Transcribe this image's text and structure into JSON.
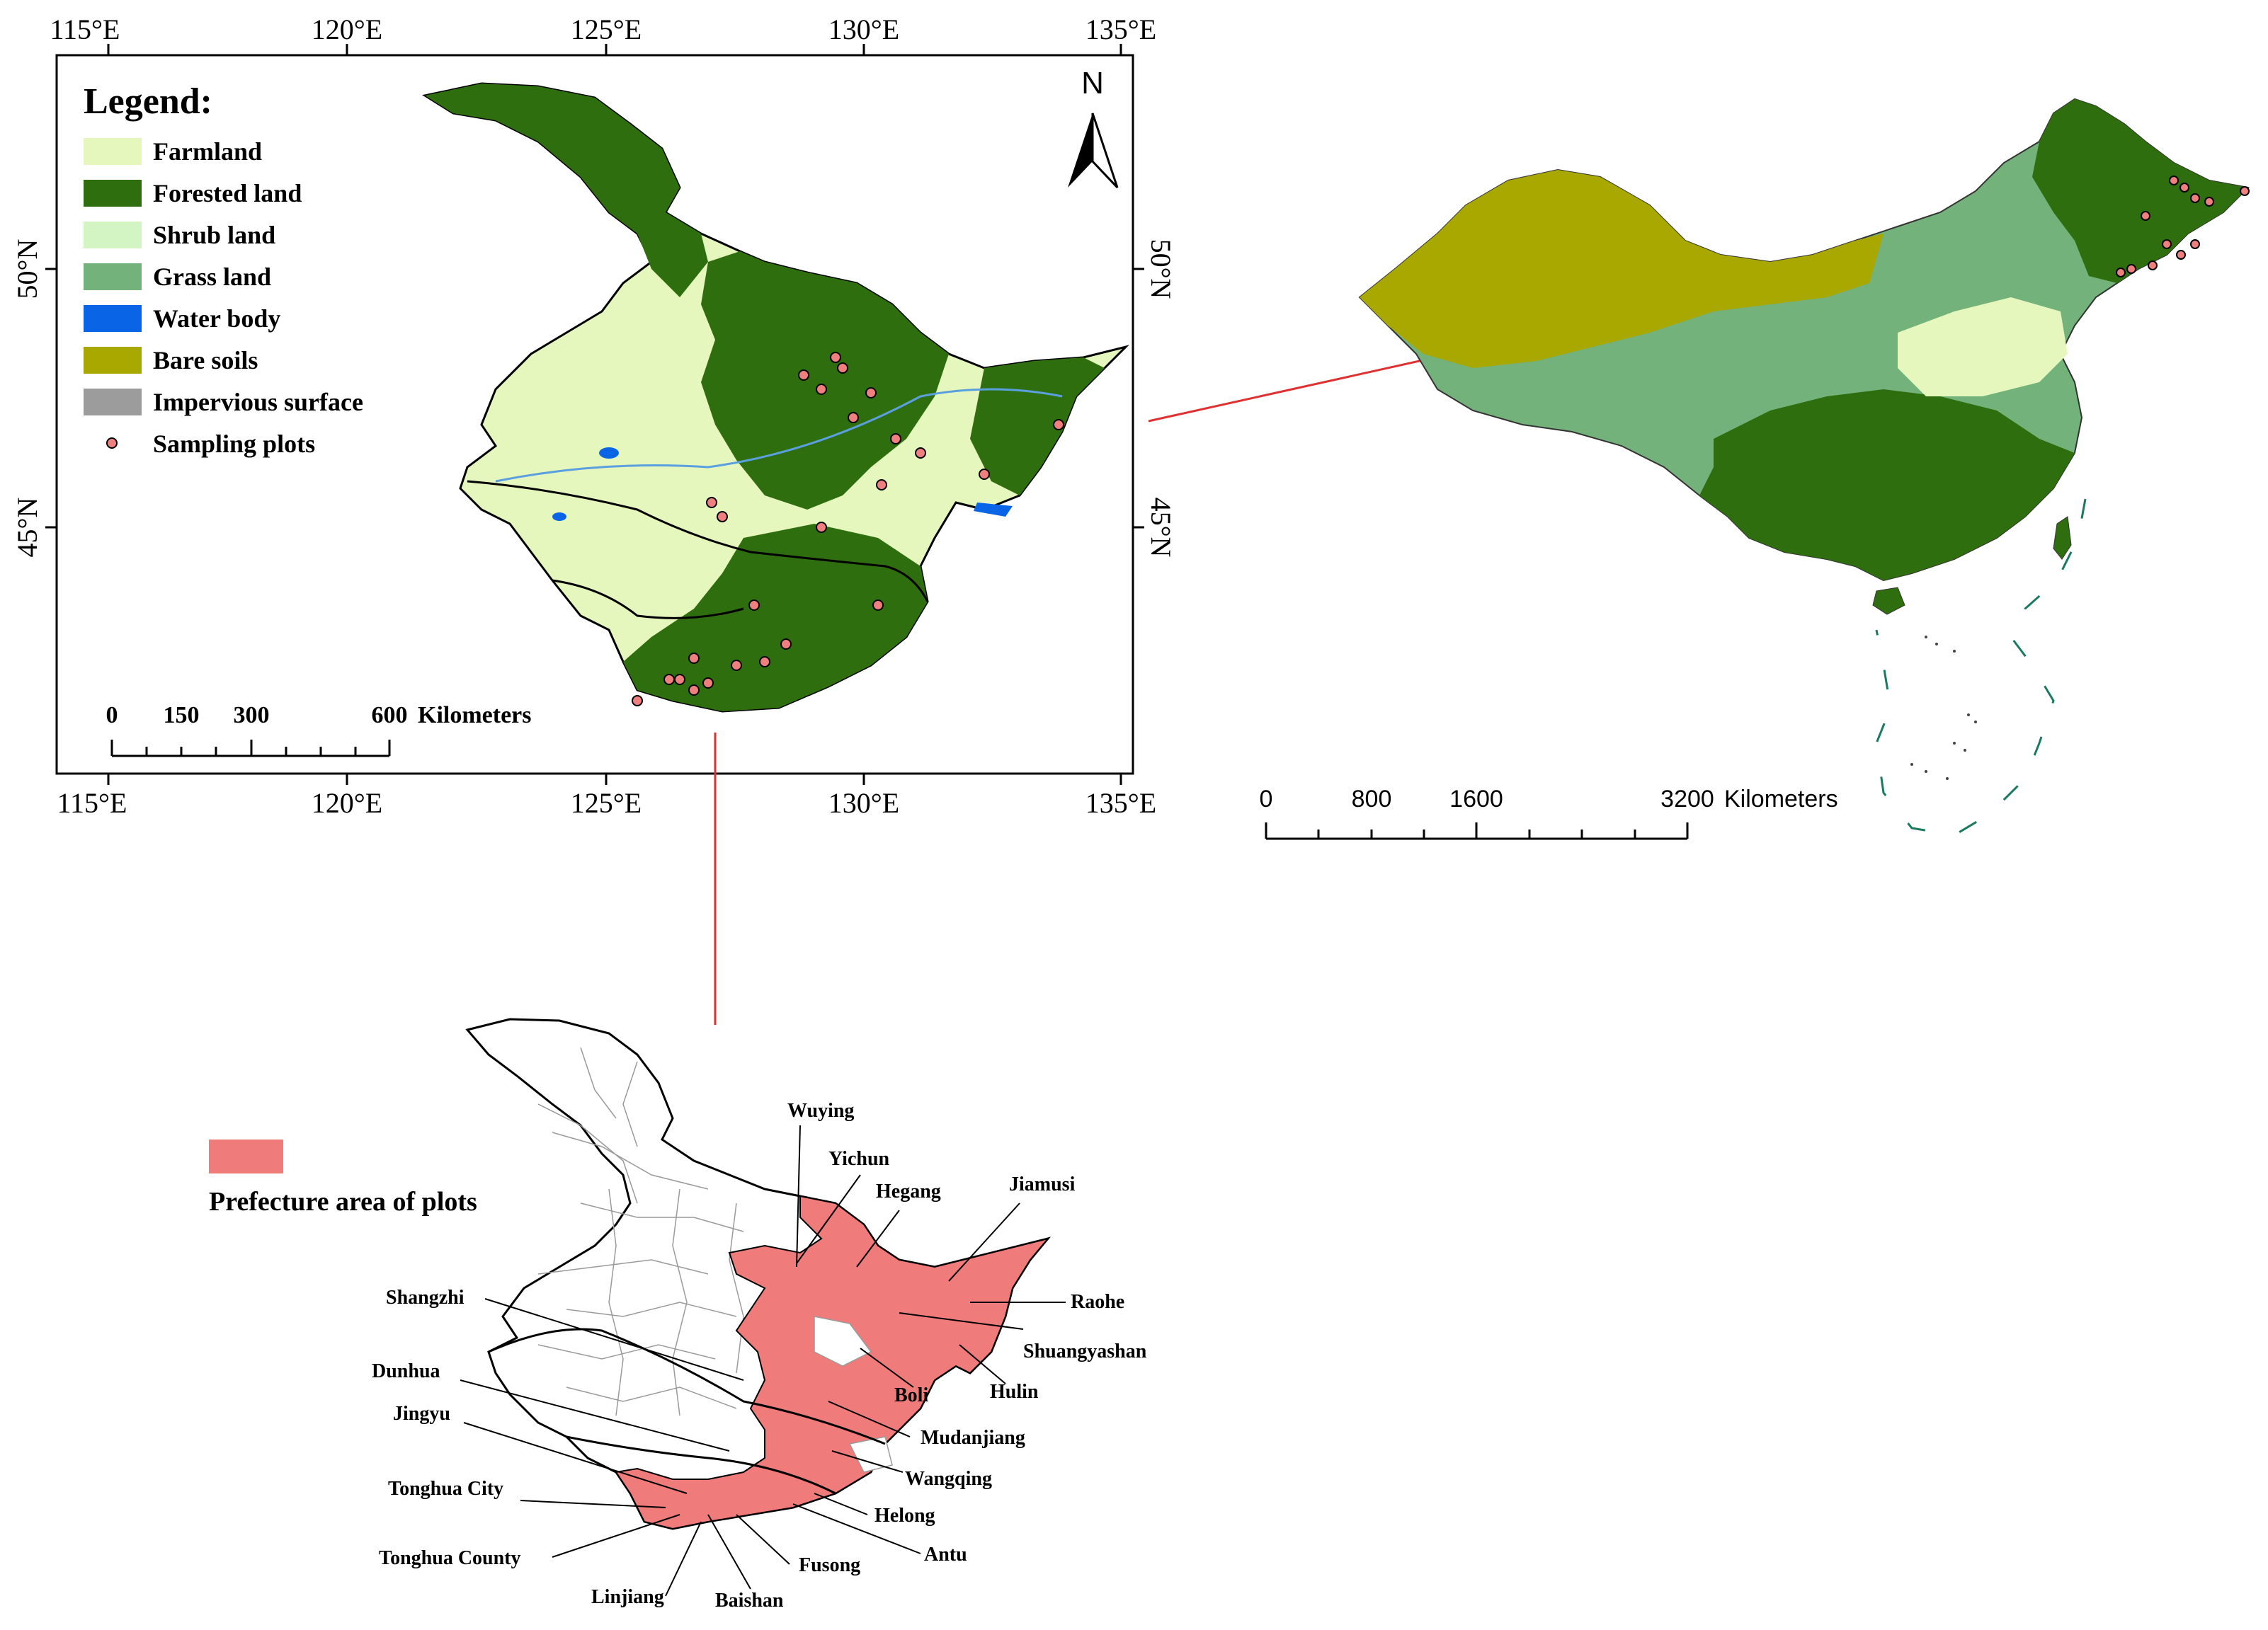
{
  "main_map": {
    "top_lon_labels": [
      "115°E",
      "120°E",
      "125°E",
      "130°E",
      "135°E"
    ],
    "bottom_lon_labels": [
      "115°E",
      "120°E",
      "125°E",
      "130°E",
      "135°E"
    ],
    "left_lat_labels": [
      "50°N",
      "45°N"
    ],
    "right_lat_labels": [
      "50°N",
      "45°N"
    ],
    "north_label": "N",
    "legend": {
      "title": "Legend:",
      "items": [
        {
          "label": "Farmland",
          "color": "#e6f7bd"
        },
        {
          "label": "Forested land",
          "color": "#2e6e0e"
        },
        {
          "label": "Shrub land",
          "color": "#d2f5c3"
        },
        {
          "label": "Grass land",
          "color": "#73b27a"
        },
        {
          "label": "Water body",
          "color": "#0a64e6"
        },
        {
          "label": "Bare soils",
          "color": "#a8a800"
        },
        {
          "label": "Impervious surface",
          "color": "#9c9c9c"
        },
        {
          "label": "Sampling plots",
          "color": "#f08080"
        }
      ]
    },
    "scale_bar": {
      "ticks": [
        "0",
        "150",
        "300",
        "600"
      ],
      "unit": "Kilometers"
    }
  },
  "china_map": {
    "scale_bar": {
      "ticks": [
        "0",
        "800",
        "1600",
        "3200"
      ],
      "unit": "Kilometers"
    }
  },
  "prefecture_map": {
    "legend_label": "Prefecture area of plots",
    "highlight_color": "#f07b7b",
    "place_labels": [
      "Wuying",
      "Yichun",
      "Hegang",
      "Jiamusi",
      "Raohe",
      "Shuangyashan",
      "Hulin",
      "Boli",
      "Mudanjiang",
      "Wangqing",
      "Helong",
      "Antu",
      "Fusong",
      "Baishan",
      "Linjiang",
      "Tonghua County",
      "Tonghua City",
      "Jingyu",
      "Dunhua",
      "Shangzhi"
    ]
  }
}
